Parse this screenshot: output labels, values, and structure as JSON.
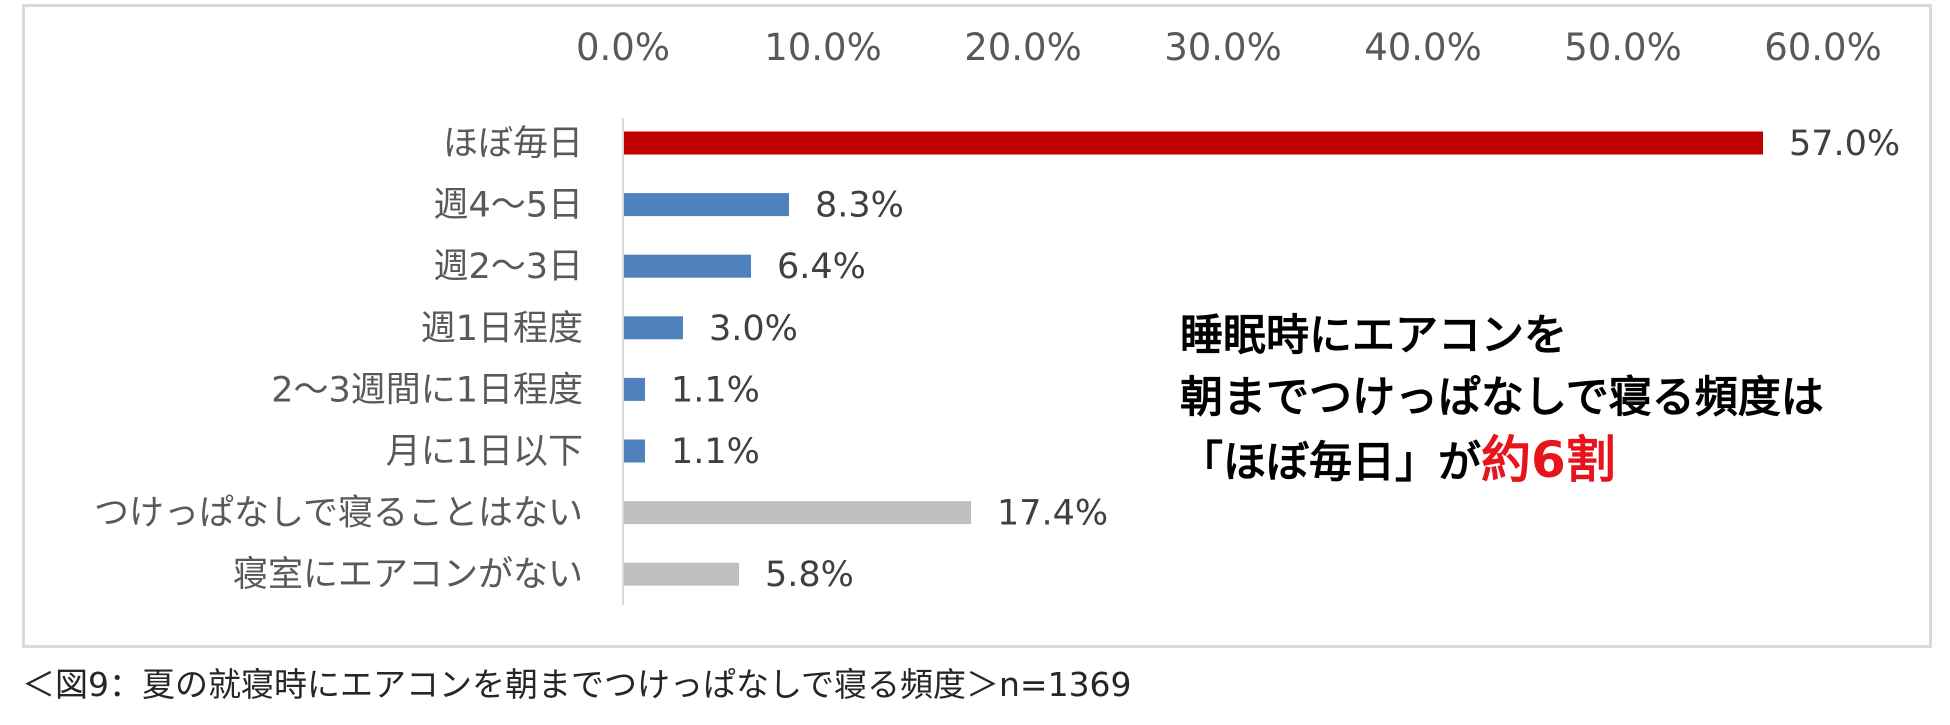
{
  "chart_data": {
    "type": "bar",
    "orientation": "horizontal",
    "categories": [
      "ほぼ毎日",
      "週4～5日",
      "週2～3日",
      "週1日程度",
      "2～3週間に1日程度",
      "月に1日以下",
      "つけっぱなしで寝ることはない",
      "寝室にエアコンがない"
    ],
    "values": [
      57.0,
      8.3,
      6.4,
      3.0,
      1.1,
      1.1,
      17.4,
      5.8
    ],
    "value_labels": [
      "57.0%",
      "8.3%",
      "6.4%",
      "3.0%",
      "1.1%",
      "1.1%",
      "17.4%",
      "5.8%"
    ],
    "bar_colors": [
      "#c00000",
      "#4f81bd",
      "#4f81bd",
      "#4f81bd",
      "#4f81bd",
      "#4f81bd",
      "#bfbfbf",
      "#bfbfbf"
    ],
    "xlim": [
      0,
      60
    ],
    "x_ticks": [
      "0.0%",
      "10.0%",
      "20.0%",
      "30.0%",
      "40.0%",
      "50.0%",
      "60.0%"
    ],
    "x_axis_position": "top",
    "grid": false
  },
  "callout": {
    "line1": "睡眠時にエアコンを",
    "line2": "朝までつけっぱなしで寝る頻度は",
    "line3_prefix": "「ほぼ毎日」が",
    "line3_highlight": "約6割"
  },
  "caption": "＜図9：夏の就寝時にエアコンを朝までつけっぱなしで寝る頻度＞n=1369",
  "colors": {
    "highlight": "#e8141b",
    "frame": "#d9d9d9"
  }
}
